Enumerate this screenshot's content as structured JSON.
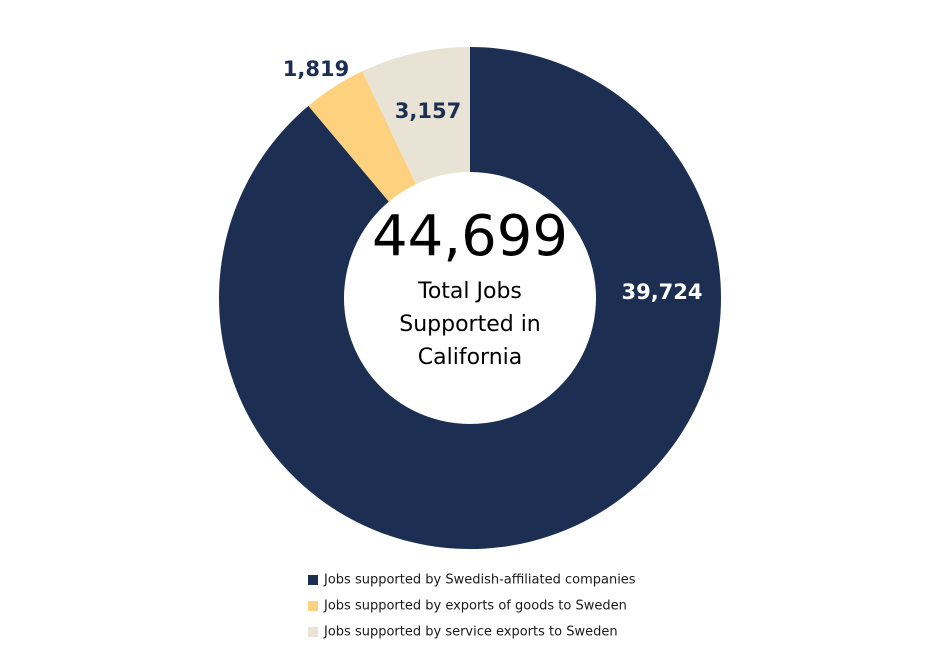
{
  "chart_data": {
    "type": "donut",
    "center_value": 44699,
    "center_value_label": "44,699",
    "center_label": [
      "Total Jobs",
      "Supported in",
      "California"
    ],
    "categories": [
      "Jobs supported by Swedish-affiliated companies",
      "Jobs supported by exports of goods to Sweden",
      "Jobs supported by service exports to Sweden"
    ],
    "values": [
      39724,
      1819,
      3157
    ],
    "value_labels": [
      "39,724",
      "1,819",
      "3,157"
    ],
    "colors": [
      "#1c2f52",
      "#fdd17e",
      "#e8e3d4"
    ],
    "label_colors": [
      "#ffffff",
      "#1c2f52",
      "#1c2f52"
    ]
  }
}
